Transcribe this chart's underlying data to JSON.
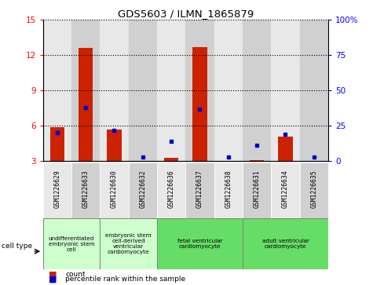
{
  "title": "GDS5603 / ILMN_1865879",
  "samples": [
    "GSM1226629",
    "GSM1226633",
    "GSM1226630",
    "GSM1226632",
    "GSM1226636",
    "GSM1226637",
    "GSM1226638",
    "GSM1226631",
    "GSM1226634",
    "GSM1226635"
  ],
  "count_values": [
    5.9,
    12.6,
    5.7,
    3.0,
    3.3,
    12.7,
    3.0,
    3.1,
    5.1,
    3.0
  ],
  "percentile_values": [
    20,
    38,
    22,
    3,
    14,
    37,
    3,
    11,
    19,
    3
  ],
  "ylim_left": [
    3,
    15
  ],
  "ylim_right": [
    0,
    100
  ],
  "yticks_left": [
    3,
    6,
    9,
    12,
    15
  ],
  "yticks_right": [
    0,
    25,
    50,
    75,
    100
  ],
  "ytick_labels_right": [
    "0",
    "25",
    "50",
    "75",
    "100%"
  ],
  "cell_type_groups": [
    {
      "label": "undifferentiated\nembryonic stem\ncell",
      "start": 0,
      "end": 2,
      "color": "#ccffcc"
    },
    {
      "label": "embryonic stem\ncell-derived\nventricular\ncardiomyocyte",
      "start": 2,
      "end": 4,
      "color": "#ccffcc"
    },
    {
      "label": "fetal ventricular\ncardiomyocyte",
      "start": 4,
      "end": 7,
      "color": "#66dd66"
    },
    {
      "label": "adult ventricular\ncardiomyocyte",
      "start": 7,
      "end": 10,
      "color": "#66dd66"
    }
  ],
  "cell_type_label": "cell type",
  "legend_count_label": "count",
  "legend_percentile_label": "percentile rank within the sample",
  "bar_color": "#cc2200",
  "percentile_color": "#0000cc",
  "bar_width": 0.5,
  "bg_color_light": "#e8e8e8",
  "bg_color_dark": "#d0d0d0",
  "plot_bg": "#f0f0f0"
}
